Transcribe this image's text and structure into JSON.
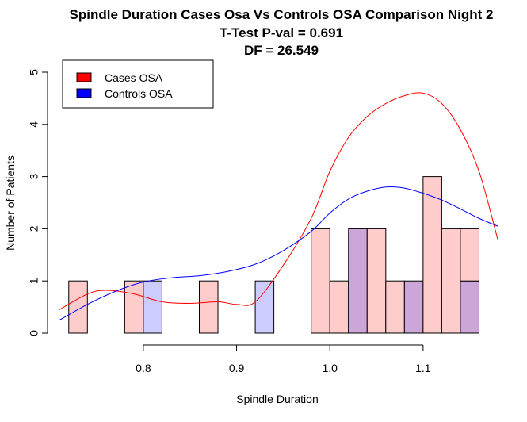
{
  "chart_data": {
    "type": "bar",
    "title": "Spindle Duration Cases Osa Vs Controls OSA Comparison Night 2",
    "subtitle_lines": [
      "T-Test P-val = 0.691",
      "DF = 26.549"
    ],
    "xlabel": "Spindle Duration",
    "ylabel": "Number of Patients",
    "xlim": [
      0.71,
      1.18
    ],
    "ylim": [
      0,
      5
    ],
    "bin_width": 0.02,
    "x_ticks": [
      "0.8",
      "0.9",
      "1.0",
      "1.1"
    ],
    "y_ticks": [
      "0",
      "1",
      "2",
      "3",
      "4",
      "5"
    ],
    "legend": {
      "placement": "top-left",
      "entries": [
        {
          "label": "Cases OSA",
          "color": "#ff0000"
        },
        {
          "label": "Controls OSA",
          "color": "#0000ff"
        }
      ]
    },
    "series": [
      {
        "name": "Cases OSA",
        "fill": "#ffcccc",
        "bins": [
          {
            "x0": 0.72,
            "count": 1
          },
          {
            "x0": 0.78,
            "count": 1
          },
          {
            "x0": 0.86,
            "count": 1
          },
          {
            "x0": 0.98,
            "count": 2
          },
          {
            "x0": 1.0,
            "count": 1
          },
          {
            "x0": 1.02,
            "count": 2
          },
          {
            "x0": 1.04,
            "count": 2
          },
          {
            "x0": 1.06,
            "count": 1
          },
          {
            "x0": 1.08,
            "count": 1
          },
          {
            "x0": 1.1,
            "count": 3
          },
          {
            "x0": 1.12,
            "count": 2
          },
          {
            "x0": 1.14,
            "count": 2
          }
        ],
        "density_curve_color": "#ff0000",
        "density_curve": [
          {
            "x": 0.71,
            "y": 0.45
          },
          {
            "x": 0.74,
            "y": 0.75
          },
          {
            "x": 0.76,
            "y": 0.82
          },
          {
            "x": 0.79,
            "y": 0.75
          },
          {
            "x": 0.82,
            "y": 0.6
          },
          {
            "x": 0.85,
            "y": 0.57
          },
          {
            "x": 0.88,
            "y": 0.6
          },
          {
            "x": 0.9,
            "y": 0.55
          },
          {
            "x": 0.92,
            "y": 0.6
          },
          {
            "x": 0.95,
            "y": 1.3
          },
          {
            "x": 0.98,
            "y": 2.2
          },
          {
            "x": 1.0,
            "y": 3.1
          },
          {
            "x": 1.02,
            "y": 3.75
          },
          {
            "x": 1.04,
            "y": 4.15
          },
          {
            "x": 1.06,
            "y": 4.4
          },
          {
            "x": 1.08,
            "y": 4.55
          },
          {
            "x": 1.1,
            "y": 4.6
          },
          {
            "x": 1.12,
            "y": 4.4
          },
          {
            "x": 1.14,
            "y": 3.9
          },
          {
            "x": 1.16,
            "y": 3.1
          },
          {
            "x": 1.18,
            "y": 1.8
          }
        ]
      },
      {
        "name": "Controls OSA",
        "fill": "#ccccff",
        "bins": [
          {
            "x0": 0.8,
            "count": 1
          },
          {
            "x0": 0.92,
            "count": 1
          },
          {
            "x0": 1.02,
            "count": 2
          },
          {
            "x0": 1.08,
            "count": 1
          },
          {
            "x0": 1.14,
            "count": 1
          }
        ],
        "density_curve_color": "#0000ff",
        "density_curve": [
          {
            "x": 0.71,
            "y": 0.25
          },
          {
            "x": 0.74,
            "y": 0.55
          },
          {
            "x": 0.77,
            "y": 0.8
          },
          {
            "x": 0.8,
            "y": 0.98
          },
          {
            "x": 0.83,
            "y": 1.06
          },
          {
            "x": 0.86,
            "y": 1.1
          },
          {
            "x": 0.89,
            "y": 1.18
          },
          {
            "x": 0.92,
            "y": 1.32
          },
          {
            "x": 0.95,
            "y": 1.58
          },
          {
            "x": 0.98,
            "y": 1.95
          },
          {
            "x": 1.0,
            "y": 2.3
          },
          {
            "x": 1.02,
            "y": 2.57
          },
          {
            "x": 1.04,
            "y": 2.72
          },
          {
            "x": 1.06,
            "y": 2.8
          },
          {
            "x": 1.08,
            "y": 2.78
          },
          {
            "x": 1.1,
            "y": 2.68
          },
          {
            "x": 1.12,
            "y": 2.55
          },
          {
            "x": 1.14,
            "y": 2.38
          },
          {
            "x": 1.16,
            "y": 2.2
          },
          {
            "x": 1.18,
            "y": 2.05
          }
        ]
      }
    ],
    "overlap_fill": "#cca6d9"
  }
}
